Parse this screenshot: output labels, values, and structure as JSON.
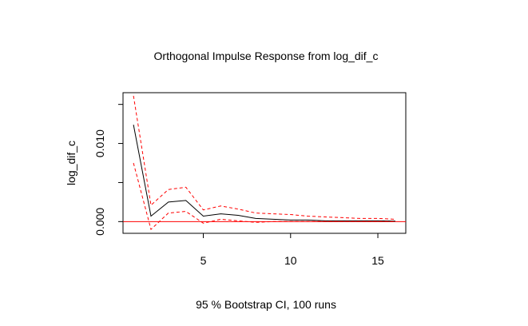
{
  "chart_data": {
    "type": "line",
    "title": "Orthogonal Impulse Response from log_dif_c",
    "xlabel": "",
    "ylabel": "log_dif_c",
    "footer": "95 % Bootstrap CI,  100 runs",
    "xlim": [
      0.4,
      16.6
    ],
    "ylim": [
      -0.0015,
      0.0165
    ],
    "x_ticks": [
      {
        "value": 5,
        "label": "5"
      },
      {
        "value": 10,
        "label": "10"
      },
      {
        "value": 15,
        "label": "15"
      }
    ],
    "y_ticks": [
      {
        "value": 0.0,
        "label": "0.000"
      },
      {
        "value": 0.005,
        "label": ""
      },
      {
        "value": 0.01,
        "label": "0.010"
      },
      {
        "value": 0.015,
        "label": ""
      }
    ],
    "x": [
      1,
      2,
      3,
      4,
      5,
      6,
      7,
      8,
      9,
      10,
      11,
      12,
      13,
      14,
      15,
      16
    ],
    "series": [
      {
        "role": "estimate",
        "color": "#000000",
        "dash": "solid",
        "values": [
          0.0124,
          0.0007,
          0.0025,
          0.0027,
          0.0007,
          0.001,
          0.0008,
          0.0004,
          0.0003,
          0.0002,
          0.0002,
          0.0001,
          0.0001,
          0.0001,
          0.0001,
          5e-05
        ]
      },
      {
        "role": "upper CI",
        "color": "#ff0000",
        "dash": "dashed",
        "values": [
          0.0161,
          0.0021,
          0.0041,
          0.0044,
          0.0015,
          0.002,
          0.0016,
          0.0011,
          0.001,
          0.0009,
          0.0007,
          0.0006,
          0.0005,
          0.0004,
          0.0004,
          0.0003
        ]
      },
      {
        "role": "lower CI",
        "color": "#ff0000",
        "dash": "dashed",
        "values": [
          0.0075,
          -0.001,
          0.0011,
          0.0013,
          -0.0002,
          0.0003,
          0.0001,
          -0.0001,
          0.0,
          0.0,
          0.0,
          0.0,
          0.0,
          0.0,
          0.0,
          0.0
        ]
      }
    ],
    "reference_line": {
      "y": 0,
      "color": "#ff0000"
    },
    "grid": false,
    "legend": "none"
  }
}
